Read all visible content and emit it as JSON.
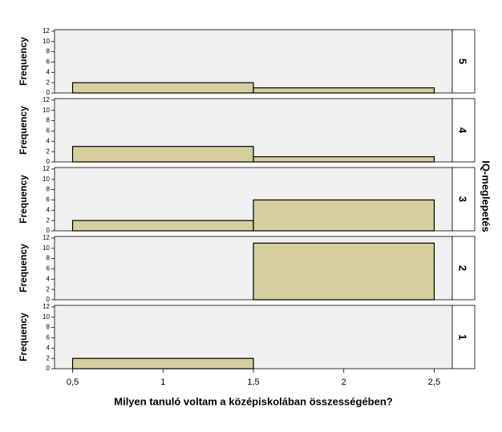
{
  "facet_title": "IQ-meglepetés",
  "chart_data": [
    {
      "type": "histogram",
      "panel_label": "5",
      "ylabel": "Frequency",
      "bins": [
        0.5,
        1.5,
        2.5
      ],
      "values": [
        2,
        1
      ],
      "color": "#d4cf9c",
      "xlim": [
        0.4,
        2.6
      ],
      "ylim": [
        0,
        12.3
      ],
      "yticks": [
        0,
        2,
        4,
        6,
        8,
        10,
        12
      ]
    },
    {
      "type": "histogram",
      "panel_label": "4",
      "ylabel": "Frequency",
      "bins": [
        0.5,
        1.5,
        2.5
      ],
      "values": [
        3,
        1
      ],
      "color": "#d4cf9c",
      "xlim": [
        0.4,
        2.6
      ],
      "ylim": [
        0,
        12.3
      ],
      "yticks": [
        0,
        2,
        4,
        6,
        8,
        10,
        12
      ]
    },
    {
      "type": "histogram",
      "panel_label": "3",
      "ylabel": "Frequency",
      "bins": [
        0.5,
        1.5,
        2.5
      ],
      "values": [
        2,
        6
      ],
      "color": "#d4cf9c",
      "xlim": [
        0.4,
        2.6
      ],
      "ylim": [
        0,
        12.3
      ],
      "yticks": [
        0,
        2,
        4,
        6,
        8,
        10,
        12
      ]
    },
    {
      "type": "histogram",
      "panel_label": "2",
      "ylabel": "Frequency",
      "bins": [
        0.5,
        1.5,
        2.5
      ],
      "values": [
        0,
        11
      ],
      "color": "#d4cf9c",
      "xlim": [
        0.4,
        2.6
      ],
      "ylim": [
        0,
        12.3
      ],
      "yticks": [
        0,
        2,
        4,
        6,
        8,
        10,
        12
      ]
    },
    {
      "type": "histogram",
      "panel_label": "1",
      "ylabel": "Frequency",
      "bins": [
        0.5,
        1.5,
        2.5
      ],
      "values": [
        2,
        0
      ],
      "color": "#d4cf9c",
      "xlim": [
        0.4,
        2.6
      ],
      "ylim": [
        0,
        12.3
      ],
      "yticks": [
        0,
        2,
        4,
        6,
        8,
        10,
        12
      ],
      "xlabel": "Milyen tanuló voltam a középiskolában összességében?",
      "xticks": [
        {
          "value": 0.5,
          "label": "0,5"
        },
        1,
        {
          "value": 1.5,
          "label": "1,5"
        },
        2,
        {
          "value": 2.5,
          "label": "2,5"
        }
      ]
    }
  ]
}
